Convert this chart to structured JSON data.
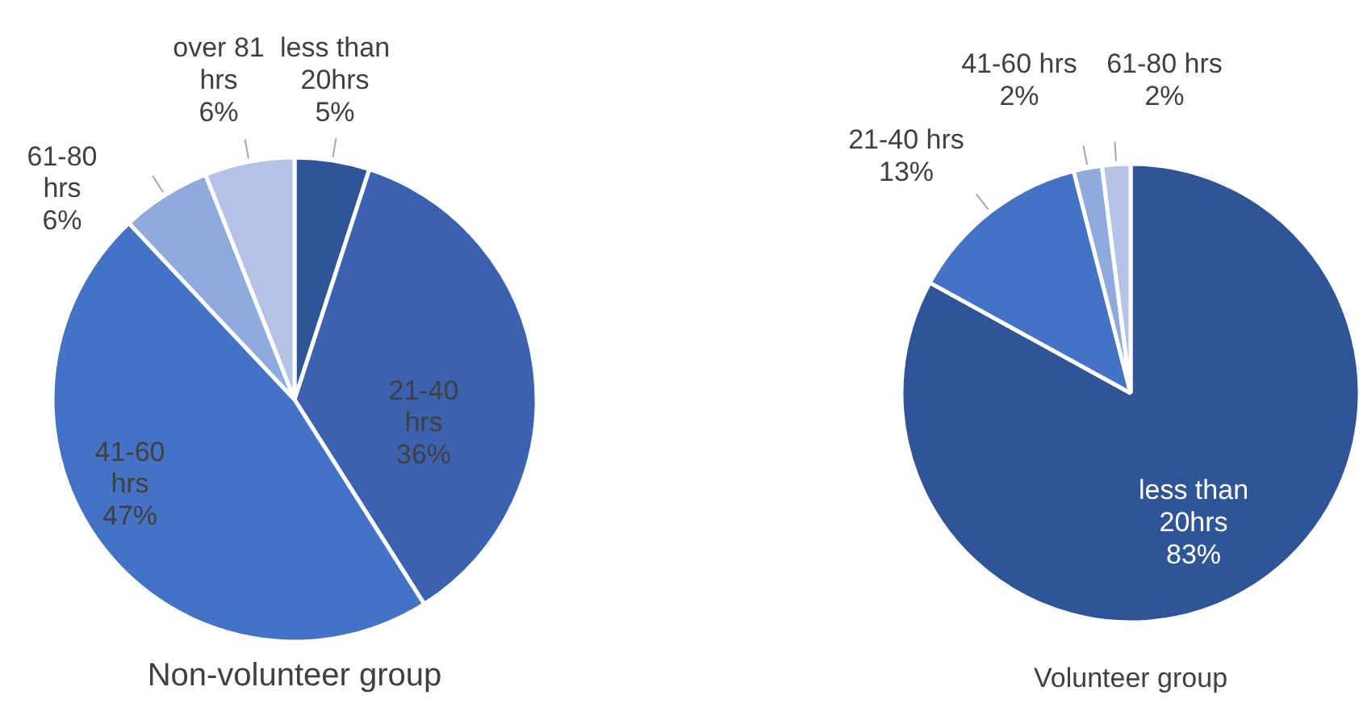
{
  "chart_data": [
    {
      "type": "pie",
      "title": "Non-volunteer group",
      "categories": [
        "less than 20hrs",
        "21-40 hrs",
        "41-60 hrs",
        "61-80 hrs",
        "over 81 hrs"
      ],
      "values": [
        5,
        36,
        47,
        6,
        6
      ],
      "value_labels": [
        "5%",
        "36%",
        "47%",
        "6%",
        "6%"
      ],
      "colors": [
        "#2f5597",
        "#3a62b0",
        "#4472c4",
        "#8faadc",
        "#b4c2e6"
      ]
    },
    {
      "type": "pie",
      "title": "Volunteer group",
      "categories": [
        "less than 20hrs",
        "21-40 hrs",
        "41-60 hrs",
        "61-80 hrs"
      ],
      "values": [
        83,
        13,
        2,
        2
      ],
      "value_labels": [
        "83%",
        "13%",
        "2%",
        "2%"
      ],
      "colors": [
        "#2f5597",
        "#4472c4",
        "#8faadc",
        "#b4c2e6"
      ]
    }
  ]
}
